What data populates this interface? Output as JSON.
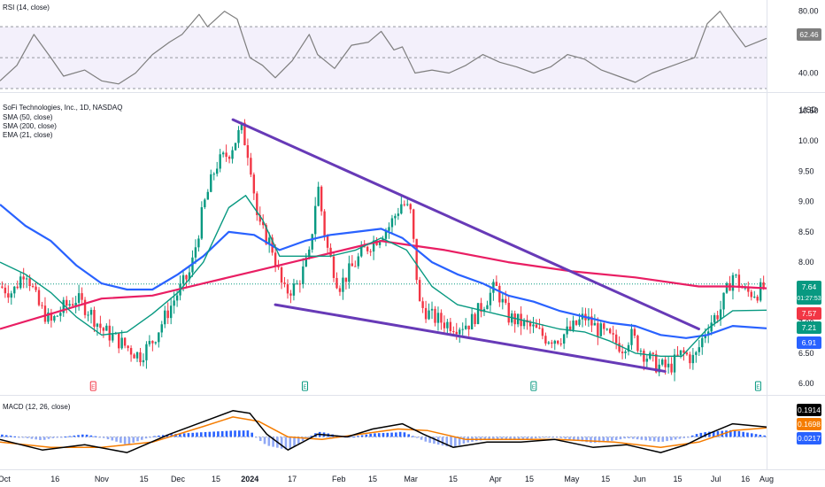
{
  "rsi_panel": {
    "label": "RSI (14, close)",
    "value_badge": "62.46",
    "ticks": [
      "80.00",
      "40.00"
    ],
    "levels": [
      70,
      50,
      30
    ]
  },
  "main_panel": {
    "title": "SoFi Technologies, Inc., 1D, NASDAQ",
    "indicators": [
      "SMA (50, close)",
      "SMA (200, close)",
      "EMA (21, close)"
    ],
    "currency": "USD",
    "price_ticks": [
      "10.50",
      "10.00",
      "9.50",
      "9.00",
      "8.50",
      "8.00",
      "7.50",
      "7.00",
      "6.50",
      "6.00"
    ],
    "badges": [
      {
        "text": "7.64",
        "sub": "01:27:53",
        "color": "#089981"
      },
      {
        "text": "7.57",
        "color": "#f23645"
      },
      {
        "text": "7.21",
        "color": "#089981"
      },
      {
        "text": "6.91",
        "color": "#2962ff"
      }
    ],
    "earnings_marker": "E"
  },
  "macd_panel": {
    "label": "MACD (12, 26, close)",
    "badges": [
      {
        "text": "0.1914",
        "color": "#000000"
      },
      {
        "text": "0.1698",
        "color": "#f57c00"
      },
      {
        "text": "0.0217",
        "color": "#2962ff"
      }
    ]
  },
  "time_axis": [
    "Oct",
    "16",
    "Nov",
    "15",
    "Dec",
    "15",
    "2024",
    "17",
    "Feb",
    "15",
    "Mar",
    "15",
    "Apr",
    "15",
    "May",
    "15",
    "Jun",
    "15",
    "Jul",
    "16",
    "Aug"
  ],
  "colors": {
    "up": "#089981",
    "down": "#f23645",
    "sma50": "#2962ff",
    "sma200": "#e91e63",
    "ema21": "#089981",
    "trendline": "#673ab7",
    "macd": "#000000",
    "signal": "#f57c00",
    "hist_pos": "#2962ff",
    "hist_neg": "#2962ff",
    "rsi": "#7e7e7e"
  },
  "chart_data": {
    "type": "candlestick",
    "title": "SoFi Technologies, Inc., 1D, NASDAQ",
    "price_range": [
      5.9,
      10.6
    ],
    "close_path": [
      [
        0,
        7.6
      ],
      [
        6,
        7.5
      ],
      [
        12,
        7.9
      ],
      [
        18,
        7.3
      ],
      [
        24,
        7.0
      ],
      [
        30,
        7.25
      ],
      [
        36,
        7.4
      ],
      [
        42,
        7.2
      ],
      [
        48,
        6.9
      ],
      [
        54,
        6.75
      ],
      [
        60,
        6.6
      ],
      [
        66,
        6.45
      ],
      [
        72,
        6.7
      ],
      [
        78,
        7.1
      ],
      [
        84,
        7.5
      ],
      [
        90,
        7.85
      ],
      [
        96,
        8.9
      ],
      [
        102,
        9.6
      ],
      [
        108,
        9.8
      ],
      [
        114,
        10.2
      ],
      [
        118,
        9.7
      ],
      [
        122,
        8.6
      ],
      [
        128,
        8.3
      ],
      [
        134,
        7.5
      ],
      [
        140,
        7.6
      ],
      [
        146,
        8.1
      ],
      [
        150,
        9.3
      ],
      [
        154,
        8.3
      ],
      [
        160,
        7.6
      ],
      [
        166,
        7.9
      ],
      [
        172,
        8.2
      ],
      [
        178,
        8.4
      ],
      [
        184,
        8.6
      ],
      [
        190,
        9.0
      ],
      [
        194,
        8.8
      ],
      [
        198,
        7.3
      ],
      [
        204,
        7.1
      ],
      [
        210,
        7.0
      ],
      [
        216,
        6.95
      ],
      [
        222,
        7.0
      ],
      [
        228,
        7.3
      ],
      [
        234,
        7.6
      ],
      [
        240,
        7.1
      ],
      [
        246,
        7.0
      ],
      [
        252,
        6.9
      ],
      [
        258,
        6.75
      ],
      [
        264,
        6.75
      ],
      [
        270,
        6.9
      ],
      [
        276,
        7.1
      ],
      [
        282,
        6.9
      ],
      [
        288,
        6.75
      ],
      [
        294,
        6.6
      ],
      [
        298,
        6.8
      ],
      [
        304,
        6.5
      ],
      [
        310,
        6.3
      ],
      [
        316,
        6.25
      ],
      [
        322,
        6.5
      ],
      [
        328,
        6.4
      ],
      [
        334,
        6.95
      ],
      [
        340,
        7.2
      ],
      [
        346,
        7.8
      ],
      [
        352,
        7.5
      ],
      [
        358,
        7.5
      ],
      [
        362,
        7.64
      ]
    ],
    "sma50_path": [
      [
        0,
        8.95
      ],
      [
        12,
        8.6
      ],
      [
        24,
        8.35
      ],
      [
        36,
        7.95
      ],
      [
        48,
        7.65
      ],
      [
        60,
        7.55
      ],
      [
        72,
        7.55
      ],
      [
        84,
        7.8
      ],
      [
        96,
        8.1
      ],
      [
        108,
        8.5
      ],
      [
        120,
        8.45
      ],
      [
        132,
        8.2
      ],
      [
        144,
        8.35
      ],
      [
        156,
        8.45
      ],
      [
        168,
        8.5
      ],
      [
        180,
        8.55
      ],
      [
        190,
        8.4
      ],
      [
        204,
        8.0
      ],
      [
        216,
        7.8
      ],
      [
        228,
        7.65
      ],
      [
        240,
        7.45
      ],
      [
        252,
        7.35
      ],
      [
        264,
        7.2
      ],
      [
        276,
        7.1
      ],
      [
        288,
        7.0
      ],
      [
        300,
        6.95
      ],
      [
        312,
        6.8
      ],
      [
        324,
        6.75
      ],
      [
        334,
        6.8
      ],
      [
        346,
        6.95
      ],
      [
        362,
        6.91
      ]
    ],
    "sma200_path": [
      [
        0,
        6.9
      ],
      [
        24,
        7.15
      ],
      [
        48,
        7.4
      ],
      [
        72,
        7.45
      ],
      [
        96,
        7.65
      ],
      [
        120,
        7.85
      ],
      [
        144,
        8.05
      ],
      [
        168,
        8.25
      ],
      [
        180,
        8.35
      ],
      [
        190,
        8.3
      ],
      [
        210,
        8.2
      ],
      [
        240,
        8.0
      ],
      [
        270,
        7.85
      ],
      [
        300,
        7.75
      ],
      [
        330,
        7.6
      ],
      [
        346,
        7.6
      ],
      [
        362,
        7.57
      ]
    ],
    "ema21_path": [
      [
        0,
        8.0
      ],
      [
        12,
        7.8
      ],
      [
        24,
        7.5
      ],
      [
        36,
        7.1
      ],
      [
        48,
        6.8
      ],
      [
        60,
        6.85
      ],
      [
        72,
        7.15
      ],
      [
        84,
        7.5
      ],
      [
        96,
        8.0
      ],
      [
        108,
        8.9
      ],
      [
        116,
        9.1
      ],
      [
        124,
        8.7
      ],
      [
        132,
        8.1
      ],
      [
        144,
        8.1
      ],
      [
        156,
        8.1
      ],
      [
        168,
        8.2
      ],
      [
        180,
        8.4
      ],
      [
        192,
        8.2
      ],
      [
        204,
        7.6
      ],
      [
        216,
        7.3
      ],
      [
        228,
        7.2
      ],
      [
        240,
        7.1
      ],
      [
        252,
        7.0
      ],
      [
        264,
        6.9
      ],
      [
        276,
        6.85
      ],
      [
        288,
        6.7
      ],
      [
        300,
        6.5
      ],
      [
        312,
        6.45
      ],
      [
        322,
        6.45
      ],
      [
        334,
        6.9
      ],
      [
        346,
        7.2
      ],
      [
        362,
        7.21
      ]
    ],
    "trendlines": [
      {
        "from": [
          110,
          10.35
        ],
        "to": [
          330,
          6.9
        ]
      },
      {
        "from": [
          130,
          7.3
        ],
        "to": [
          314,
          6.2
        ]
      }
    ],
    "rsi_path": [
      [
        0,
        35
      ],
      [
        8,
        45
      ],
      [
        16,
        65
      ],
      [
        24,
        50
      ],
      [
        30,
        38
      ],
      [
        40,
        42
      ],
      [
        48,
        35
      ],
      [
        56,
        33
      ],
      [
        64,
        40
      ],
      [
        72,
        52
      ],
      [
        80,
        60
      ],
      [
        86,
        65
      ],
      [
        94,
        78
      ],
      [
        98,
        70
      ],
      [
        106,
        80
      ],
      [
        112,
        75
      ],
      [
        118,
        50
      ],
      [
        124,
        45
      ],
      [
        130,
        37
      ],
      [
        138,
        48
      ],
      [
        146,
        65
      ],
      [
        150,
        52
      ],
      [
        158,
        43
      ],
      [
        166,
        58
      ],
      [
        174,
        60
      ],
      [
        180,
        67
      ],
      [
        186,
        55
      ],
      [
        190,
        57
      ],
      [
        196,
        40
      ],
      [
        204,
        42
      ],
      [
        212,
        40
      ],
      [
        220,
        45
      ],
      [
        228,
        52
      ],
      [
        236,
        47
      ],
      [
        244,
        44
      ],
      [
        252,
        40
      ],
      [
        260,
        44
      ],
      [
        268,
        52
      ],
      [
        276,
        49
      ],
      [
        284,
        42
      ],
      [
        292,
        38
      ],
      [
        300,
        34
      ],
      [
        308,
        40
      ],
      [
        318,
        45
      ],
      [
        328,
        50
      ],
      [
        334,
        72
      ],
      [
        340,
        80
      ],
      [
        346,
        68
      ],
      [
        352,
        57
      ],
      [
        362,
        62.46
      ]
    ],
    "macd_line": [
      [
        0,
        -0.05
      ],
      [
        20,
        -0.25
      ],
      [
        40,
        -0.15
      ],
      [
        60,
        -0.3
      ],
      [
        80,
        0.05
      ],
      [
        100,
        0.35
      ],
      [
        110,
        0.5
      ],
      [
        118,
        0.45
      ],
      [
        126,
        0.05
      ],
      [
        136,
        -0.25
      ],
      [
        150,
        0.05
      ],
      [
        164,
        0.0
      ],
      [
        176,
        0.15
      ],
      [
        190,
        0.25
      ],
      [
        200,
        0.05
      ],
      [
        214,
        -0.2
      ],
      [
        230,
        -0.1
      ],
      [
        246,
        -0.1
      ],
      [
        262,
        -0.05
      ],
      [
        280,
        -0.2
      ],
      [
        296,
        -0.15
      ],
      [
        312,
        -0.3
      ],
      [
        324,
        -0.15
      ],
      [
        334,
        0.05
      ],
      [
        346,
        0.25
      ],
      [
        362,
        0.19
      ]
    ],
    "signal_line": [
      [
        0,
        -0.1
      ],
      [
        24,
        -0.2
      ],
      [
        48,
        -0.2
      ],
      [
        72,
        -0.1
      ],
      [
        96,
        0.2
      ],
      [
        110,
        0.38
      ],
      [
        122,
        0.3
      ],
      [
        136,
        0.0
      ],
      [
        152,
        -0.05
      ],
      [
        170,
        0.05
      ],
      [
        188,
        0.15
      ],
      [
        202,
        0.12
      ],
      [
        220,
        -0.05
      ],
      [
        240,
        -0.05
      ],
      [
        264,
        -0.05
      ],
      [
        290,
        -0.1
      ],
      [
        312,
        -0.2
      ],
      [
        330,
        -0.1
      ],
      [
        346,
        0.12
      ],
      [
        362,
        0.17
      ]
    ]
  }
}
